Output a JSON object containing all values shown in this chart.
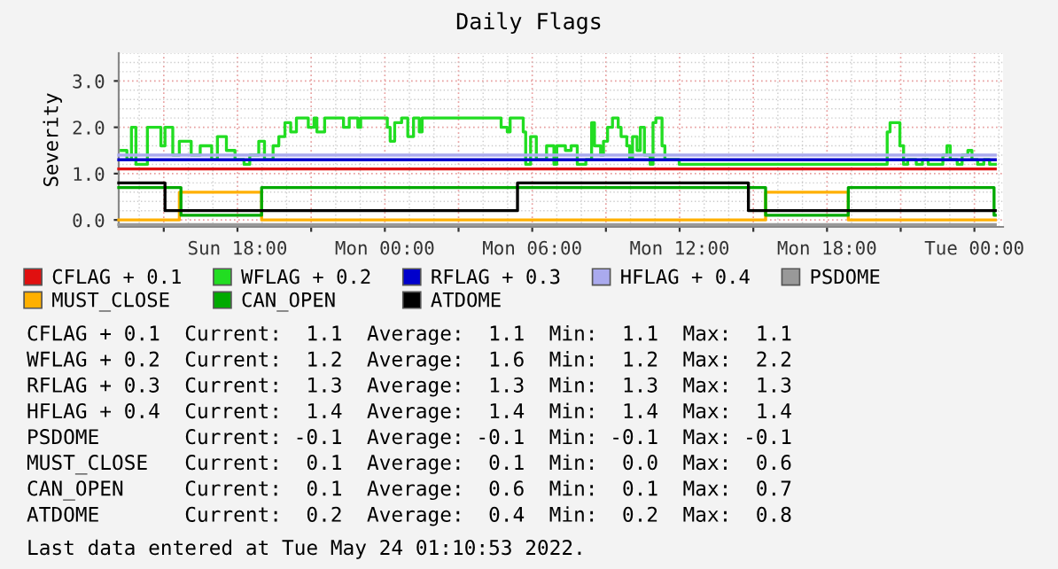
{
  "chart_data": {
    "type": "step",
    "title": "Daily Flags",
    "ylabel": "Severity",
    "xlim": [
      "2022-05-22T13:10",
      "2022-05-24T01:10"
    ],
    "ylim": [
      -0.15,
      3.6
    ],
    "xticks": [
      {
        "value": "2022-05-22T15:00",
        "label": null
      },
      {
        "value": "2022-05-22T18:00",
        "label": "Sun 18:00"
      },
      {
        "value": "2022-05-22T21:00",
        "label": null
      },
      {
        "value": "2022-05-23T00:00",
        "label": "Mon 00:00"
      },
      {
        "value": "2022-05-23T03:00",
        "label": null
      },
      {
        "value": "2022-05-23T06:00",
        "label": "Mon 06:00"
      },
      {
        "value": "2022-05-23T09:00",
        "label": null
      },
      {
        "value": "2022-05-23T12:00",
        "label": "Mon 12:00"
      },
      {
        "value": "2022-05-23T15:00",
        "label": null
      },
      {
        "value": "2022-05-23T18:00",
        "label": "Mon 18:00"
      },
      {
        "value": "2022-05-23T21:00",
        "label": null
      },
      {
        "value": "2022-05-24T00:00",
        "label": "Tue 00:00"
      }
    ],
    "yticks": [
      {
        "value": 0,
        "label": "0.0"
      },
      {
        "value": 1,
        "label": "1.0"
      },
      {
        "value": 2,
        "label": "2.0"
      },
      {
        "value": 3,
        "label": "3.0"
      }
    ],
    "grid": true,
    "legend": "bottom",
    "line_style": "solid",
    "series": [
      {
        "name": "CFLAG + 0.1",
        "color": "#e01010",
        "x": [
          "2022-05-22T13:10",
          "2022-05-24T00:51"
        ],
        "values": [
          1.1,
          1.1
        ]
      },
      {
        "name": "WFLAG + 0.2",
        "color": "#22dd22",
        "x": [
          "2022-05-22T13:16",
          "2022-05-22T13:30",
          "2022-05-22T13:41",
          "2022-05-22T13:52",
          "2022-05-22T14:20",
          "2022-05-22T14:53",
          "2022-05-22T15:03",
          "2022-05-22T15:22",
          "2022-05-22T15:38",
          "2022-05-22T16:07",
          "2022-05-22T16:29",
          "2022-05-22T16:57",
          "2022-05-22T17:11",
          "2022-05-22T17:33",
          "2022-05-22T17:54",
          "2022-05-22T18:16",
          "2022-05-22T18:30",
          "2022-05-22T18:52",
          "2022-05-22T19:06",
          "2022-05-22T19:27",
          "2022-05-22T19:41",
          "2022-05-22T19:56",
          "2022-05-22T20:10",
          "2022-05-22T20:24",
          "2022-05-22T20:53",
          "2022-05-22T21:07",
          "2022-05-22T21:14",
          "2022-05-22T21:33",
          "2022-05-22T22:19",
          "2022-05-22T22:33",
          "2022-05-22T22:54",
          "2022-05-22T23:01",
          "2022-05-23T00:06",
          "2022-05-23T00:13",
          "2022-05-23T00:24",
          "2022-05-23T00:41",
          "2022-05-23T00:56",
          "2022-05-23T01:10",
          "2022-05-23T01:24",
          "2022-05-23T01:31",
          "2022-05-23T04:44",
          "2022-05-23T04:59",
          "2022-05-23T05:06",
          "2022-05-23T05:38",
          "2022-05-23T05:44",
          "2022-05-23T05:56",
          "2022-05-23T06:10",
          "2022-05-23T06:35",
          "2022-05-23T06:53",
          "2022-05-23T07:00",
          "2022-05-23T07:21",
          "2022-05-23T07:35",
          "2022-05-23T07:50",
          "2022-05-23T08:11",
          "2022-05-23T08:25",
          "2022-05-23T08:32",
          "2022-05-23T08:47",
          "2022-05-23T08:54",
          "2022-05-23T09:04",
          "2022-05-23T09:16",
          "2022-05-23T09:30",
          "2022-05-23T09:37",
          "2022-05-23T09:51",
          "2022-05-23T09:58",
          "2022-05-23T10:05",
          "2022-05-23T10:16",
          "2022-05-23T10:24",
          "2022-05-23T10:34",
          "2022-05-23T10:48",
          "2022-05-23T10:55",
          "2022-05-23T11:02",
          "2022-05-23T11:17",
          "2022-05-23T11:24",
          "2022-05-23T11:59",
          "2022-05-23T20:27",
          "2022-05-23T20:34",
          "2022-05-23T20:58",
          "2022-05-23T21:07",
          "2022-05-23T21:17",
          "2022-05-23T21:38",
          "2022-05-23T21:53",
          "2022-05-23T22:07",
          "2022-05-23T22:43",
          "2022-05-23T22:53",
          "2022-05-23T23:01",
          "2022-05-23T23:18",
          "2022-05-23T23:30",
          "2022-05-23T23:44",
          "2022-05-23T23:54",
          "2022-05-24T00:08",
          "2022-05-24T00:23",
          "2022-05-24T00:37",
          "2022-05-24T00:51"
        ],
        "values": [
          1.5,
          1.3,
          2.0,
          1.2,
          2.0,
          1.6,
          2.0,
          1.4,
          1.7,
          1.4,
          1.6,
          1.3,
          1.8,
          1.5,
          1.3,
          1.2,
          1.4,
          1.7,
          1.3,
          1.6,
          1.8,
          2.1,
          1.9,
          2.2,
          2.0,
          2.2,
          1.9,
          2.2,
          2.0,
          2.2,
          2.0,
          2.2,
          2.0,
          1.7,
          2.1,
          2.2,
          1.8,
          2.2,
          1.9,
          2.2,
          2.0,
          1.9,
          2.2,
          1.9,
          1.2,
          1.8,
          1.3,
          1.6,
          1.2,
          1.6,
          1.5,
          1.6,
          1.2,
          1.3,
          2.1,
          1.6,
          1.4,
          1.7,
          2.0,
          2.2,
          2.0,
          1.8,
          1.6,
          1.3,
          1.8,
          1.5,
          2.0,
          1.4,
          1.2,
          2.1,
          2.2,
          1.6,
          1.3,
          1.2,
          1.9,
          2.1,
          1.6,
          1.2,
          1.3,
          1.2,
          1.3,
          1.2,
          1.4,
          1.6,
          1.3,
          1.2,
          1.4,
          1.5,
          1.3,
          1.2,
          1.3,
          1.2,
          1.2
        ]
      },
      {
        "name": "RFLAG + 0.3",
        "color": "#0000cc",
        "x": [
          "2022-05-22T13:10",
          "2022-05-24T00:51"
        ],
        "values": [
          1.3,
          1.3
        ]
      },
      {
        "name": "HFLAG + 0.4",
        "color": "#aaaaee",
        "x": [
          "2022-05-22T13:10",
          "2022-05-24T00:51"
        ],
        "values": [
          1.4,
          1.4
        ]
      },
      {
        "name": "PSDOME",
        "color": "#999999",
        "x": [
          "2022-05-22T13:10",
          "2022-05-24T00:51"
        ],
        "values": [
          -0.1,
          -0.1
        ]
      },
      {
        "name": "MUST_CLOSE",
        "color": "#ffb000",
        "x": [
          "2022-05-22T13:10",
          "2022-05-22T15:38",
          "2022-05-22T18:59",
          "2022-05-23T15:30",
          "2022-05-23T18:52",
          "2022-05-24T00:51"
        ],
        "values": [
          0.0,
          0.6,
          0.0,
          0.6,
          0.0,
          0.0
        ]
      },
      {
        "name": "CAN_OPEN",
        "color": "#00aa00",
        "x": [
          "2022-05-22T13:10",
          "2022-05-22T15:42",
          "2022-05-22T18:59",
          "2022-05-23T15:30",
          "2022-05-23T18:52",
          "2022-05-24T00:48",
          "2022-05-24T00:51"
        ],
        "values": [
          0.7,
          0.1,
          0.7,
          0.1,
          0.7,
          0.1,
          0.1
        ]
      },
      {
        "name": "ATDOME",
        "color": "#000000",
        "x": [
          "2022-05-22T13:10",
          "2022-05-22T15:03",
          "2022-05-23T05:24",
          "2022-05-23T14:48",
          "2022-05-24T00:51"
        ],
        "values": [
          0.8,
          0.2,
          0.8,
          0.2,
          0.2
        ]
      }
    ],
    "annotations": [
      "CFLAG + 0.1  Current:  1.1  Average:  1.1  Min:  1.1  Max:  1.1",
      "WFLAG + 0.2  Current:  1.2  Average:  1.6  Min:  1.2  Max:  2.2",
      "RFLAG + 0.3  Current:  1.3  Average:  1.3  Min:  1.3  Max:  1.3",
      "HFLAG + 0.4  Current:  1.4  Average:  1.4  Min:  1.4  Max:  1.4",
      "PSDOME       Current: -0.1  Average: -0.1  Min: -0.1  Max: -0.1",
      "MUST_CLOSE   Current:  0.1  Average:  0.1  Min:  0.0  Max:  0.6",
      "CAN_OPEN     Current:  0.1  Average:  0.6  Min:  0.1  Max:  0.7",
      "ATDOME       Current:  0.2  Average:  0.4  Min:  0.2  Max:  0.8",
      "Last data entered at Tue May 24 01:10:53 2022."
    ]
  }
}
